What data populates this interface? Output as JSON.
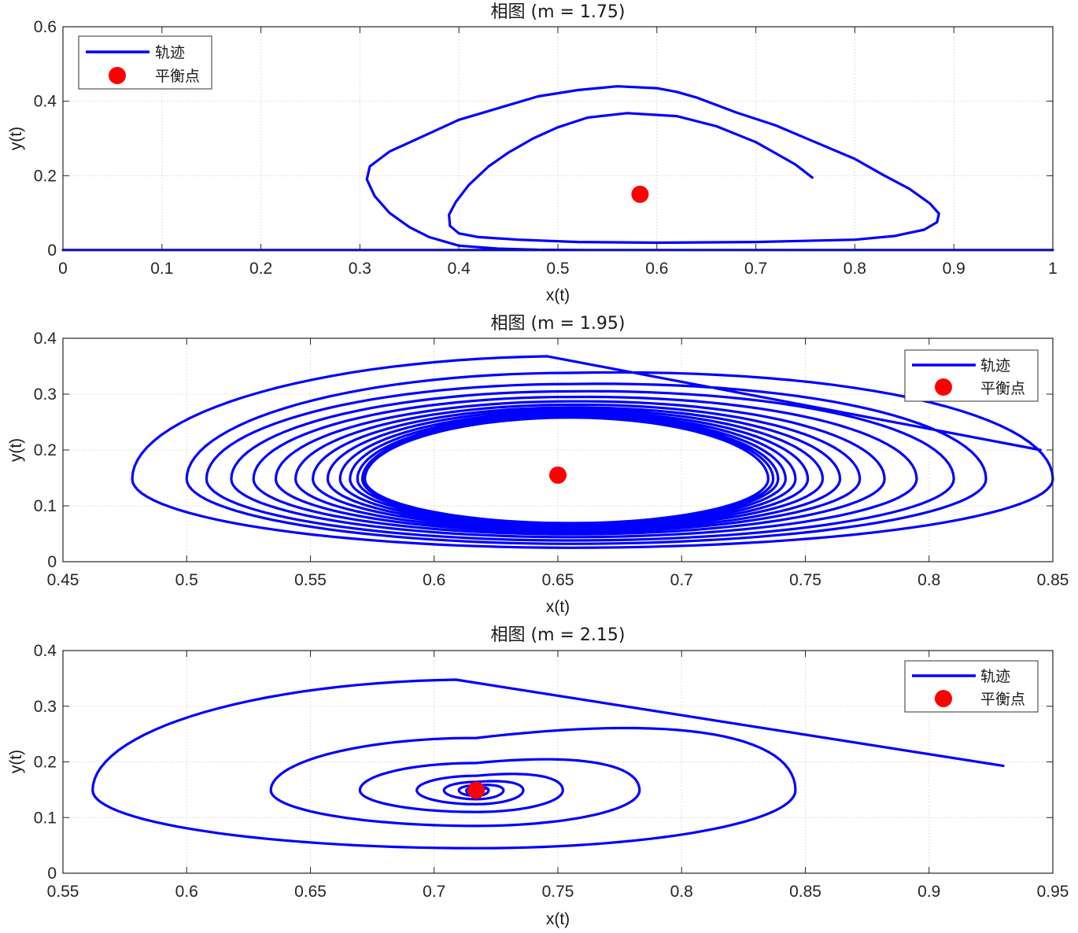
{
  "colors": {
    "trajectory": "#0000ff",
    "equilibrium": "#ff0000",
    "grid": "#d6d6d6",
    "axis": "#262626"
  },
  "chart_data": [
    {
      "type": "line",
      "title": "相图 (m = 1.75)",
      "xlabel": "x(t)",
      "ylabel": "y(t)",
      "xlim": [
        0,
        1
      ],
      "ylim": [
        0,
        0.6
      ],
      "xticks": [
        0,
        0.1,
        0.2,
        0.3,
        0.4,
        0.5,
        0.6,
        0.7,
        0.8,
        0.9,
        1
      ],
      "yticks": [
        0,
        0.2,
        0.4,
        0.6
      ],
      "xtick_labels": [
        "0",
        "0.1",
        "0.2",
        "0.3",
        "0.4",
        "0.5",
        "0.6",
        "0.7",
        "0.8",
        "0.9",
        "1"
      ],
      "ytick_labels": [
        "0",
        "0.2",
        "0.4",
        "0.6"
      ],
      "grid": true,
      "legend": {
        "position": "top-left",
        "entries": [
          "轨迹",
          "平衡点"
        ]
      },
      "equilibrium": [
        0.583,
        0.15
      ],
      "series": [
        {
          "name": "轨迹",
          "x": [
            0.757,
            0.74,
            0.72,
            0.7,
            0.66,
            0.62,
            0.57,
            0.53,
            0.5,
            0.475,
            0.45,
            0.43,
            0.41,
            0.397,
            0.39,
            0.391,
            0.4,
            0.42,
            0.46,
            0.52,
            0.6,
            0.7,
            0.8,
            0.84,
            0.87,
            0.883,
            0.885,
            0.876,
            0.855,
            0.83,
            0.8,
            0.76,
            0.72,
            0.68,
            0.66,
            0.64,
            0.62,
            0.6,
            0.56,
            0.52,
            0.48,
            0.4,
            0.33,
            0.31,
            0.307,
            0.315,
            0.33,
            0.35,
            0.37,
            0.4,
            0.44,
            0.48,
            0.53,
            0.58,
            0.63,
            0.68,
            0.73,
            0.78,
            0.82,
            0.86,
            0.9,
            0.93,
            0.96,
            0.98,
            0.99,
            0.997,
            1.0,
            0.98,
            0.9,
            0.8,
            0.6,
            0.4,
            0.28,
            0.25,
            0.22,
            0.2,
            0.1,
            0.0
          ],
          "y": [
            0.195,
            0.23,
            0.26,
            0.29,
            0.333,
            0.36,
            0.368,
            0.356,
            0.33,
            0.3,
            0.262,
            0.225,
            0.175,
            0.13,
            0.095,
            0.065,
            0.045,
            0.035,
            0.028,
            0.022,
            0.02,
            0.022,
            0.028,
            0.038,
            0.055,
            0.075,
            0.098,
            0.125,
            0.165,
            0.2,
            0.245,
            0.29,
            0.335,
            0.37,
            0.39,
            0.41,
            0.425,
            0.435,
            0.44,
            0.43,
            0.413,
            0.35,
            0.265,
            0.225,
            0.19,
            0.145,
            0.1,
            0.062,
            0.035,
            0.012,
            0.004,
            0.001,
            0.0005,
            0.0005,
            0.0005,
            0.0005,
            0.0005,
            0.0005,
            0.0005,
            0.0005,
            0.0005,
            0.0005,
            0.0005,
            0.0005,
            0.0005,
            0.0005,
            0.0005,
            0.0005,
            0.0005,
            0.0005,
            0.0005,
            0.0005,
            0.0005,
            0.0005,
            0.0005,
            0.0005,
            0.0005,
            0.0005
          ]
        }
      ]
    },
    {
      "type": "line",
      "title": "相图 (m = 1.95)",
      "xlabel": "x(t)",
      "ylabel": "y(t)",
      "xlim": [
        0.45,
        0.85
      ],
      "ylim": [
        0,
        0.4
      ],
      "xticks": [
        0.45,
        0.5,
        0.55,
        0.6,
        0.65,
        0.7,
        0.75,
        0.8,
        0.85
      ],
      "yticks": [
        0,
        0.1,
        0.2,
        0.3,
        0.4
      ],
      "xtick_labels": [
        "0.45",
        "0.5",
        "0.55",
        "0.6",
        "0.65",
        "0.7",
        "0.75",
        "0.8",
        "0.85"
      ],
      "ytick_labels": [
        "0",
        "0.1",
        "0.2",
        "0.3",
        "0.4"
      ],
      "grid": true,
      "legend": {
        "position": "top-right",
        "entries": [
          "轨迹",
          "平衡点"
        ]
      },
      "equilibrium": [
        0.65,
        0.155
      ],
      "series": [
        {
          "name": "轨迹",
          "cx": 0.655,
          "cy": 0.148,
          "start": [
            0.845,
            0.2
          ],
          "loops_x_min": [
            0.478,
            0.5,
            0.508,
            0.518,
            0.527,
            0.536,
            0.544,
            0.551,
            0.557,
            0.562,
            0.566,
            0.569,
            0.571,
            0.572
          ],
          "loops_x_max": [
            0.85,
            0.823,
            0.81,
            0.795,
            0.782,
            0.772,
            0.764,
            0.757,
            0.751,
            0.746,
            0.742,
            0.739,
            0.737,
            0.735
          ],
          "loops_y_max": [
            0.368,
            0.338,
            0.318,
            0.305,
            0.295,
            0.287,
            0.281,
            0.276,
            0.272,
            0.268,
            0.265,
            0.262,
            0.26,
            0.258
          ],
          "loops_y_min": [
            0.025,
            0.032,
            0.038,
            0.044,
            0.049,
            0.053,
            0.056,
            0.059,
            0.061,
            0.063,
            0.065,
            0.067,
            0.068,
            0.069
          ]
        }
      ]
    },
    {
      "type": "line",
      "title": "相图 (m = 2.15)",
      "xlabel": "x(t)",
      "ylabel": "y(t)",
      "xlim": [
        0.55,
        0.95
      ],
      "ylim": [
        0,
        0.4
      ],
      "xticks": [
        0.55,
        0.6,
        0.65,
        0.7,
        0.75,
        0.8,
        0.85,
        0.9,
        0.95
      ],
      "yticks": [
        0,
        0.1,
        0.2,
        0.3,
        0.4
      ],
      "xtick_labels": [
        "0.55",
        "0.6",
        "0.65",
        "0.7",
        "0.75",
        "0.8",
        "0.85",
        "0.9",
        "0.95"
      ],
      "ytick_labels": [
        "0",
        "0.1",
        "0.2",
        "0.3",
        "0.4"
      ],
      "grid": true,
      "legend": {
        "position": "top-right",
        "entries": [
          "轨迹",
          "平衡点"
        ]
      },
      "equilibrium": [
        0.717,
        0.149
      ],
      "series": [
        {
          "name": "轨迹",
          "cx": 0.717,
          "cy": 0.149,
          "start": [
            0.93,
            0.193
          ],
          "loops_x_min": [
            0.562,
            0.634,
            0.67,
            0.693,
            0.704,
            0.71,
            0.713
          ],
          "loops_x_max": [
            0.846,
            0.783,
            0.752,
            0.736,
            0.728,
            0.722
          ],
          "loops_y_max": [
            0.348,
            0.243,
            0.198,
            0.175,
            0.164,
            0.158,
            0.154
          ],
          "loops_y_min": [
            0.045,
            0.085,
            0.11,
            0.124,
            0.133,
            0.139
          ]
        }
      ]
    }
  ]
}
